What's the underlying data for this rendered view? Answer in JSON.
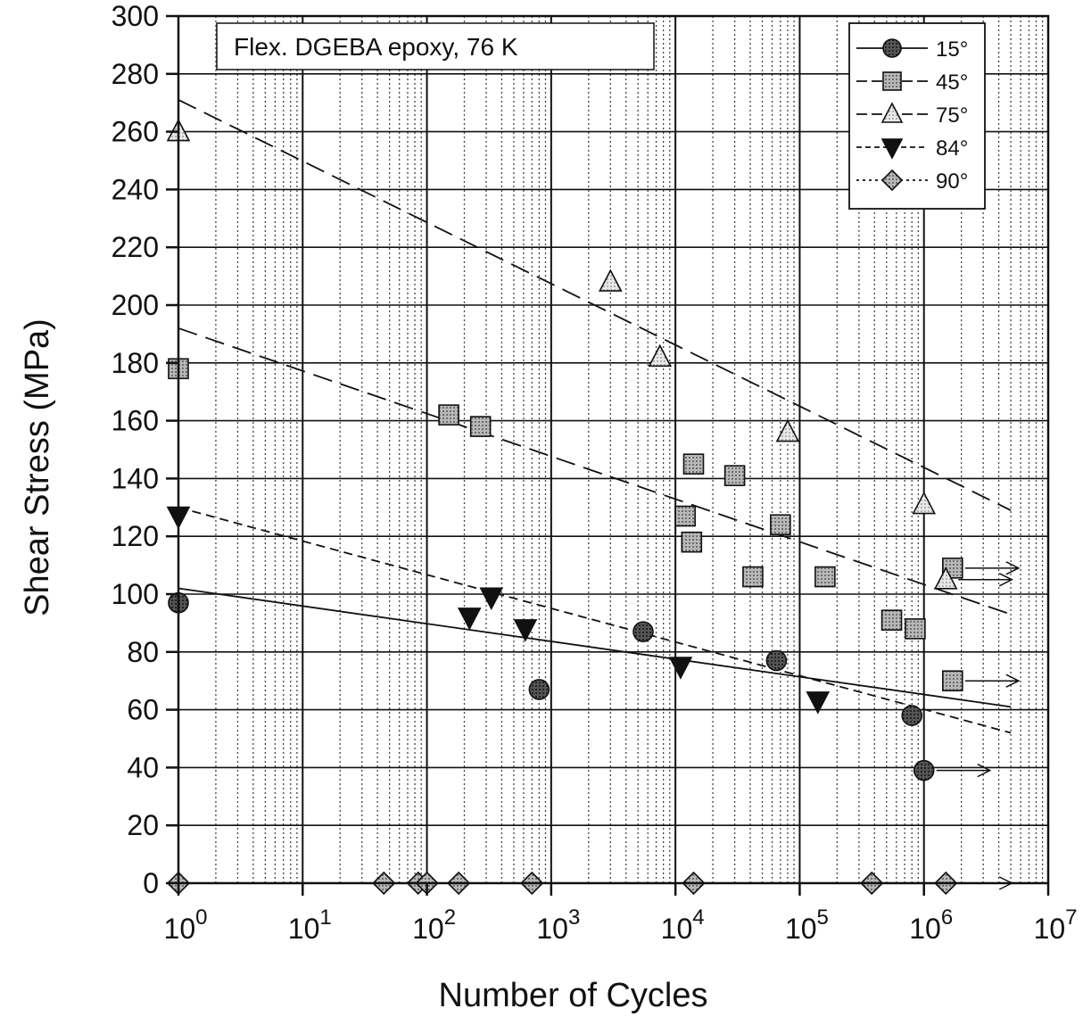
{
  "chart_data": {
    "type": "scatter",
    "title": "",
    "annotation": "Flex. DGEBA epoxy, 76 K",
    "xlabel": "Number of Cycles",
    "ylabel": "Shear Stress (MPa)",
    "x_scale": "log",
    "xlim": [
      1,
      10000000
    ],
    "ylim": [
      0,
      300
    ],
    "x_ticks": [
      {
        "base": "10",
        "exp": "0"
      },
      {
        "base": "10",
        "exp": "1"
      },
      {
        "base": "10",
        "exp": "2"
      },
      {
        "base": "10",
        "exp": "3"
      },
      {
        "base": "10",
        "exp": "4"
      },
      {
        "base": "10",
        "exp": "5"
      },
      {
        "base": "10",
        "exp": "6"
      },
      {
        "base": "10",
        "exp": "7"
      }
    ],
    "y_ticks": [
      "0",
      "20",
      "40",
      "60",
      "80",
      "100",
      "120",
      "140",
      "160",
      "180",
      "200",
      "220",
      "240",
      "260",
      "280",
      "300"
    ],
    "grid": true,
    "legend_position": "top-right",
    "series": [
      {
        "name": "15°",
        "marker": "circle",
        "color": "#3a3a3a",
        "points": [
          [
            1,
            97
          ],
          [
            800,
            67
          ],
          [
            5500,
            87
          ],
          [
            65000,
            77
          ],
          [
            800000,
            58
          ],
          [
            1000000,
            39
          ]
        ],
        "runouts": [
          [
            1000000,
            39
          ]
        ],
        "fit": {
          "style": "solid",
          "x": [
            1,
            5000000
          ],
          "y": [
            102,
            61
          ]
        }
      },
      {
        "name": "45°",
        "marker": "square",
        "color": "#8a8a8a",
        "points": [
          [
            1,
            178
          ],
          [
            150,
            162
          ],
          [
            270,
            158
          ],
          [
            14000,
            145
          ],
          [
            30000,
            141
          ],
          [
            12000,
            127
          ],
          [
            13500,
            118
          ],
          [
            42000,
            106
          ],
          [
            70000,
            124
          ],
          [
            160000,
            106
          ],
          [
            550000,
            91
          ],
          [
            850000,
            88
          ],
          [
            1700000,
            109
          ],
          [
            1700000,
            70
          ]
        ],
        "runouts": [
          [
            1700000,
            109
          ],
          [
            1700000,
            70
          ]
        ],
        "fit": {
          "style": "long-dash",
          "x": [
            1,
            5000000
          ],
          "y": [
            192,
            93
          ]
        }
      },
      {
        "name": "75°",
        "marker": "triangle-up",
        "color": "#cfcfcf",
        "points": [
          [
            1,
            260
          ],
          [
            3000,
            208
          ],
          [
            7500,
            182
          ],
          [
            80000,
            156
          ],
          [
            1000000,
            131
          ],
          [
            1500000,
            105
          ]
        ],
        "runouts": [
          [
            1500000,
            105
          ]
        ],
        "fit": {
          "style": "long-dash",
          "x": [
            1,
            5000000
          ],
          "y": [
            271,
            129
          ]
        }
      },
      {
        "name": "84°",
        "marker": "triangle-down",
        "color": "#111111",
        "points": [
          [
            1,
            127
          ],
          [
            220,
            92
          ],
          [
            330,
            99
          ],
          [
            620,
            88
          ],
          [
            11000,
            75
          ],
          [
            140000,
            63
          ]
        ],
        "runouts": [],
        "fit": {
          "style": "short-dash",
          "x": [
            1,
            5000000
          ],
          "y": [
            130,
            52
          ]
        }
      },
      {
        "name": "90°",
        "marker": "diamond",
        "color": "#8a8a8a",
        "points": [
          [
            1,
            0
          ],
          [
            45,
            0
          ],
          [
            85,
            0
          ],
          [
            100,
            0
          ],
          [
            180,
            0
          ],
          [
            700,
            0
          ],
          [
            14000,
            0
          ],
          [
            380000,
            0
          ],
          [
            1500000,
            0
          ]
        ],
        "runouts": [
          [
            1500000,
            0
          ]
        ],
        "fit": null
      }
    ]
  }
}
